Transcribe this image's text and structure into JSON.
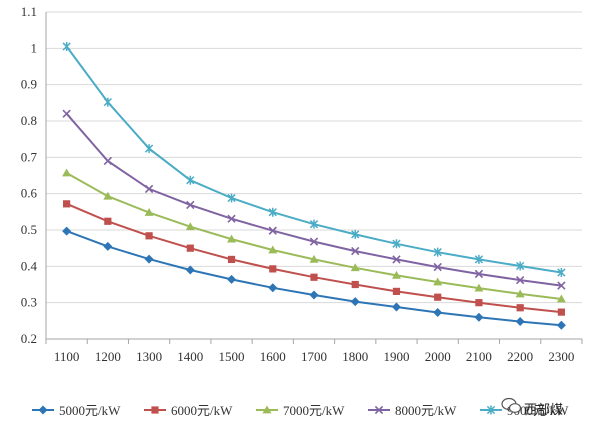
{
  "chart_data": {
    "type": "line",
    "title": "",
    "xlabel": "",
    "ylabel": "",
    "x": [
      1100,
      1200,
      1300,
      1400,
      1500,
      1600,
      1700,
      1800,
      1900,
      2000,
      2100,
      2200,
      2300
    ],
    "ylim": [
      0.2,
      1.1
    ],
    "yticks": [
      "0.2",
      "0.3",
      "0.4",
      "0.5",
      "0.6",
      "0.7",
      "0.8",
      "0.9",
      "1",
      "1.1"
    ],
    "xticks": [
      "1100",
      "1200",
      "1300",
      "1400",
      "1500",
      "1600",
      "1700",
      "1800",
      "1900",
      "2000",
      "2100",
      "2200",
      "2300"
    ],
    "grid": "horizontal",
    "legend_position": "bottom",
    "series": [
      {
        "name": "5000元/kW",
        "marker": "diamond",
        "color": "#2e75b6",
        "values": [
          0.497,
          0.455,
          0.42,
          0.39,
          0.364,
          0.341,
          0.321,
          0.303,
          0.288,
          0.273,
          0.26,
          0.248,
          0.238
        ]
      },
      {
        "name": "6000元/kW",
        "marker": "square",
        "color": "#c0504d",
        "values": [
          0.572,
          0.524,
          0.484,
          0.45,
          0.419,
          0.393,
          0.37,
          0.35,
          0.331,
          0.315,
          0.3,
          0.286,
          0.274
        ]
      },
      {
        "name": "7000元/kW",
        "marker": "triangle",
        "color": "#9bbb59",
        "values": [
          0.657,
          0.593,
          0.548,
          0.509,
          0.475,
          0.445,
          0.419,
          0.396,
          0.375,
          0.357,
          0.34,
          0.324,
          0.31
        ]
      },
      {
        "name": "8000元/kW",
        "marker": "x",
        "color": "#8064a2",
        "values": [
          0.82,
          0.69,
          0.613,
          0.569,
          0.531,
          0.498,
          0.468,
          0.442,
          0.419,
          0.398,
          0.379,
          0.362,
          0.347
        ]
      },
      {
        "name": "9000元/kW",
        "marker": "asterisk",
        "color": "#4bacc6",
        "values": [
          1.005,
          0.852,
          0.724,
          0.637,
          0.588,
          0.549,
          0.516,
          0.488,
          0.462,
          0.439,
          0.419,
          0.401,
          0.383
        ]
      }
    ]
  },
  "watermark": {
    "text": "西部煤",
    "icon": "wechat-icon"
  }
}
